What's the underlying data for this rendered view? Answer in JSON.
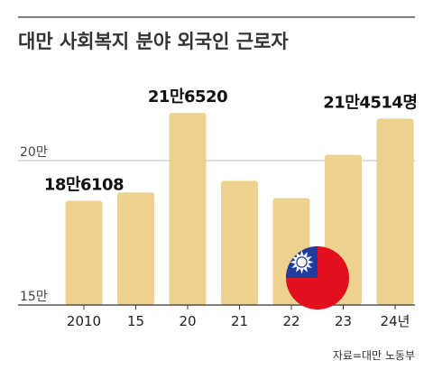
{
  "chart_data": {
    "type": "bar",
    "title": "대만 사회복지 분야 외국인 근로자",
    "categories": [
      "2010",
      "15",
      "20",
      "21",
      "22",
      "23",
      "24년"
    ],
    "values": [
      186108,
      189000,
      216520,
      193000,
      187000,
      202000,
      214514
    ],
    "data_labels": [
      {
        "index": 0,
        "text": "18만6108"
      },
      {
        "index": 2,
        "text": "21만6520"
      },
      {
        "index": 6,
        "text": "21만4514명"
      }
    ],
    "yticks": [
      {
        "value": 150000,
        "label": "15만"
      },
      {
        "value": 200000,
        "label": "20만"
      }
    ],
    "ylim": [
      150000,
      225000
    ],
    "grid": true,
    "bar_color": "#EDD28F",
    "grid_color": "#BDBDBD",
    "annotation_icon": "taiwan-flag-icon",
    "source": "자료=대만 노동부"
  }
}
